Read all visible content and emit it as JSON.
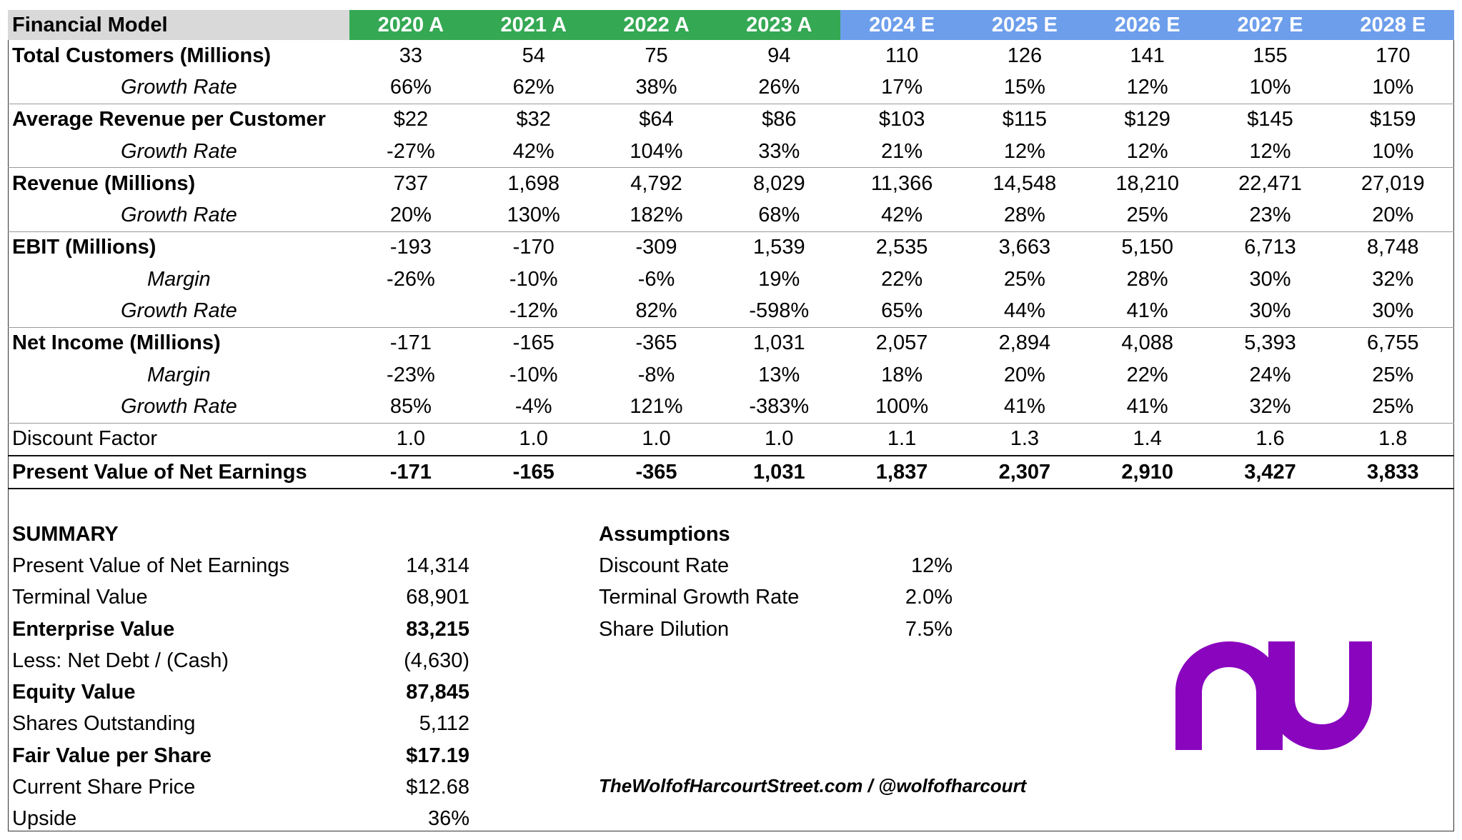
{
  "header": {
    "title": "Financial Model",
    "years": [
      {
        "label": "2020 A",
        "kind": "actual"
      },
      {
        "label": "2021 A",
        "kind": "actual"
      },
      {
        "label": "2022 A",
        "kind": "actual"
      },
      {
        "label": "2023 A",
        "kind": "actual"
      },
      {
        "label": "2024 E",
        "kind": "estimate"
      },
      {
        "label": "2025 E",
        "kind": "estimate"
      },
      {
        "label": "2026 E",
        "kind": "estimate"
      },
      {
        "label": "2027 E",
        "kind": "estimate"
      },
      {
        "label": "2028 E",
        "kind": "estimate"
      }
    ]
  },
  "colors": {
    "actual_header": "#34a853",
    "estimate_header": "#6d9eeb",
    "title_header": "#d9d9d9",
    "logo": "#8a05be"
  },
  "rows": [
    {
      "label": "Total Customers (Millions)",
      "style": "main",
      "values": [
        "33",
        "54",
        "75",
        "94",
        "110",
        "126",
        "141",
        "155",
        "170"
      ]
    },
    {
      "label": "Growth Rate",
      "style": "growth",
      "values": [
        "66%",
        "62%",
        "38%",
        "26%",
        "17%",
        "15%",
        "12%",
        "10%",
        "10%"
      ]
    },
    {
      "label": "Average Revenue per Customer",
      "style": "main",
      "values": [
        "$22",
        "$32",
        "$64",
        "$86",
        "$103",
        "$115",
        "$129",
        "$145",
        "$159"
      ]
    },
    {
      "label": "Growth Rate",
      "style": "growth",
      "values": [
        "-27%",
        "42%",
        "104%",
        "33%",
        "21%",
        "12%",
        "12%",
        "12%",
        "10%"
      ]
    },
    {
      "label": "Revenue (Millions)",
      "style": "main",
      "values": [
        "737",
        "1,698",
        "4,792",
        "8,029",
        "11,366",
        "14,548",
        "18,210",
        "22,471",
        "27,019"
      ]
    },
    {
      "label": "Growth Rate",
      "style": "growth",
      "values": [
        "20%",
        "130%",
        "182%",
        "68%",
        "42%",
        "28%",
        "25%",
        "23%",
        "20%"
      ]
    },
    {
      "label": "EBIT (Millions)",
      "style": "main",
      "values": [
        "-193",
        "-170",
        "-309",
        "1,539",
        "2,535",
        "3,663",
        "5,150",
        "6,713",
        "8,748"
      ]
    },
    {
      "label": "Margin",
      "style": "margin",
      "values": [
        "-26%",
        "-10%",
        "-6%",
        "19%",
        "22%",
        "25%",
        "28%",
        "30%",
        "32%"
      ]
    },
    {
      "label": "Growth Rate",
      "style": "growth",
      "values": [
        "",
        "-12%",
        "82%",
        "-598%",
        "65%",
        "44%",
        "41%",
        "30%",
        "30%"
      ]
    },
    {
      "label": "Net Income (Millions)",
      "style": "main",
      "values": [
        "-171",
        "-165",
        "-365",
        "1,031",
        "2,057",
        "2,894",
        "4,088",
        "5,393",
        "6,755"
      ]
    },
    {
      "label": "Margin",
      "style": "margin",
      "values": [
        "-23%",
        "-10%",
        "-8%",
        "13%",
        "18%",
        "20%",
        "22%",
        "24%",
        "25%"
      ]
    },
    {
      "label": "Growth Rate",
      "style": "growth",
      "values": [
        "85%",
        "-4%",
        "121%",
        "-383%",
        "100%",
        "41%",
        "41%",
        "32%",
        "25%"
      ]
    },
    {
      "label": "Discount Factor",
      "style": "plain",
      "values": [
        "1.0",
        "1.0",
        "1.0",
        "1.0",
        "1.1",
        "1.3",
        "1.4",
        "1.6",
        "1.8"
      ]
    },
    {
      "label": "Present Value of Net Earnings",
      "style": "total",
      "values": [
        "-171",
        "-165",
        "-365",
        "1,031",
        "1,837",
        "2,307",
        "2,910",
        "3,427",
        "3,833"
      ]
    }
  ],
  "summary": {
    "title": "SUMMARY",
    "items": [
      {
        "label": "Present Value of Net Earnings",
        "value": "14,314",
        "bold": false
      },
      {
        "label": "Terminal Value",
        "value": "68,901",
        "bold": false
      },
      {
        "label": "Enterprise Value",
        "value": "83,215",
        "bold": true
      },
      {
        "label": "Less: Net Debt / (Cash)",
        "value": "(4,630)",
        "bold": false
      },
      {
        "label": "Equity Value",
        "value": "87,845",
        "bold": true
      },
      {
        "label": "Shares Outstanding",
        "value": "5,112",
        "bold": false
      },
      {
        "label": "Fair Value per Share",
        "value": "$17.19",
        "bold": true
      },
      {
        "label": "Current Share Price",
        "value": "$12.68",
        "bold": false
      },
      {
        "label": "Upside",
        "value": "36%",
        "bold": false
      }
    ]
  },
  "assumptions": {
    "title": "Assumptions",
    "items": [
      {
        "label": "Discount Rate",
        "value": "12%"
      },
      {
        "label": "Terminal Growth Rate",
        "value": "2.0%"
      },
      {
        "label": "Share Dilution",
        "value": "7.5%"
      }
    ]
  },
  "credit": "TheWolfofHarcourtStreet.com / @wolfofharcourt",
  "logo": {
    "text": "nu",
    "icon": "nubank-logo-icon"
  }
}
